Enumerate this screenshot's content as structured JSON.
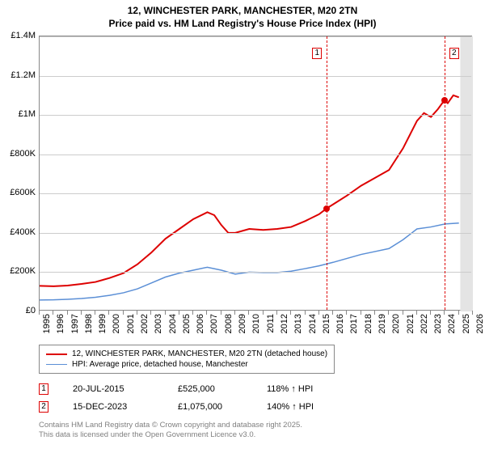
{
  "title_line1": "12, WINCHESTER PARK, MANCHESTER, M20 2TN",
  "title_line2": "Price paid vs. HM Land Registry's House Price Index (HPI)",
  "chart": {
    "type": "line",
    "plot_bg": "#ffffff",
    "border_color": "#888888",
    "grid_color": "#cccccc",
    "xlim": [
      1995,
      2026
    ],
    "ylim": [
      0,
      1400000
    ],
    "ytick_step": 200000,
    "ytick_labels": [
      "£0",
      "£200K",
      "£400K",
      "£600K",
      "£800K",
      "£1M",
      "£1.2M",
      "£1.4M"
    ],
    "xtick_step": 1,
    "xtick_labels": [
      "1995",
      "1996",
      "1997",
      "1998",
      "1999",
      "2000",
      "2001",
      "2002",
      "2003",
      "2004",
      "2005",
      "2006",
      "2007",
      "2008",
      "2009",
      "2010",
      "2011",
      "2012",
      "2013",
      "2014",
      "2015",
      "2016",
      "2017",
      "2018",
      "2019",
      "2020",
      "2021",
      "2022",
      "2023",
      "2024",
      "2025",
      "2026"
    ],
    "tick_fontsize": 11,
    "future_shade_from_year": 2025.1,
    "future_shade_color": "#e4e4e4",
    "series": [
      {
        "name": "property",
        "label": "12, WINCHESTER PARK, MANCHESTER, M20 2TN (detached house)",
        "color": "#dd0000",
        "width": 2,
        "data": [
          [
            1995,
            130000
          ],
          [
            1996,
            128000
          ],
          [
            1997,
            132000
          ],
          [
            1998,
            140000
          ],
          [
            1999,
            150000
          ],
          [
            2000,
            170000
          ],
          [
            2001,
            195000
          ],
          [
            2002,
            240000
          ],
          [
            2003,
            300000
          ],
          [
            2004,
            370000
          ],
          [
            2005,
            420000
          ],
          [
            2006,
            470000
          ],
          [
            2007,
            505000
          ],
          [
            2007.5,
            490000
          ],
          [
            2008,
            440000
          ],
          [
            2008.5,
            400000
          ],
          [
            2009,
            400000
          ],
          [
            2010,
            420000
          ],
          [
            2011,
            415000
          ],
          [
            2012,
            420000
          ],
          [
            2013,
            430000
          ],
          [
            2014,
            460000
          ],
          [
            2015,
            495000
          ],
          [
            2015.55,
            525000
          ],
          [
            2016,
            545000
          ],
          [
            2017,
            590000
          ],
          [
            2018,
            640000
          ],
          [
            2019,
            680000
          ],
          [
            2020,
            720000
          ],
          [
            2021,
            830000
          ],
          [
            2022,
            970000
          ],
          [
            2022.5,
            1010000
          ],
          [
            2023,
            990000
          ],
          [
            2023.5,
            1030000
          ],
          [
            2023.96,
            1075000
          ],
          [
            2024.2,
            1060000
          ],
          [
            2024.6,
            1100000
          ],
          [
            2025,
            1090000
          ]
        ]
      },
      {
        "name": "hpi",
        "label": "HPI: Average price, detached house, Manchester",
        "color": "#5b8fd6",
        "width": 1.5,
        "data": [
          [
            1995,
            58000
          ],
          [
            1996,
            59000
          ],
          [
            1997,
            62000
          ],
          [
            1998,
            66000
          ],
          [
            1999,
            72000
          ],
          [
            2000,
            82000
          ],
          [
            2001,
            95000
          ],
          [
            2002,
            115000
          ],
          [
            2003,
            145000
          ],
          [
            2004,
            175000
          ],
          [
            2005,
            195000
          ],
          [
            2006,
            210000
          ],
          [
            2007,
            225000
          ],
          [
            2008,
            210000
          ],
          [
            2009,
            190000
          ],
          [
            2010,
            200000
          ],
          [
            2011,
            198000
          ],
          [
            2012,
            198000
          ],
          [
            2013,
            205000
          ],
          [
            2014,
            218000
          ],
          [
            2015,
            232000
          ],
          [
            2016,
            250000
          ],
          [
            2017,
            270000
          ],
          [
            2018,
            290000
          ],
          [
            2019,
            305000
          ],
          [
            2020,
            320000
          ],
          [
            2021,
            365000
          ],
          [
            2022,
            420000
          ],
          [
            2023,
            430000
          ],
          [
            2024,
            445000
          ],
          [
            2025,
            450000
          ]
        ]
      }
    ],
    "sale_markers": [
      {
        "num": "1",
        "year": 2015.55,
        "price": 525000,
        "color": "#dd0000"
      },
      {
        "num": "2",
        "year": 2023.96,
        "price": 1075000,
        "color": "#dd0000"
      }
    ]
  },
  "legend": {
    "border_color": "#888888",
    "fontsize": 10
  },
  "sales_table": {
    "rows": [
      {
        "num": "1",
        "date": "20-JUL-2015",
        "price": "£525,000",
        "pct": "118% ↑ HPI",
        "color": "#dd0000"
      },
      {
        "num": "2",
        "date": "15-DEC-2023",
        "price": "£1,075,000",
        "pct": "140% ↑ HPI",
        "color": "#dd0000"
      }
    ]
  },
  "footer": {
    "line1": "Contains HM Land Registry data © Crown copyright and database right 2025.",
    "line2": "This data is licensed under the Open Government Licence v3.0.",
    "color": "#808080"
  }
}
